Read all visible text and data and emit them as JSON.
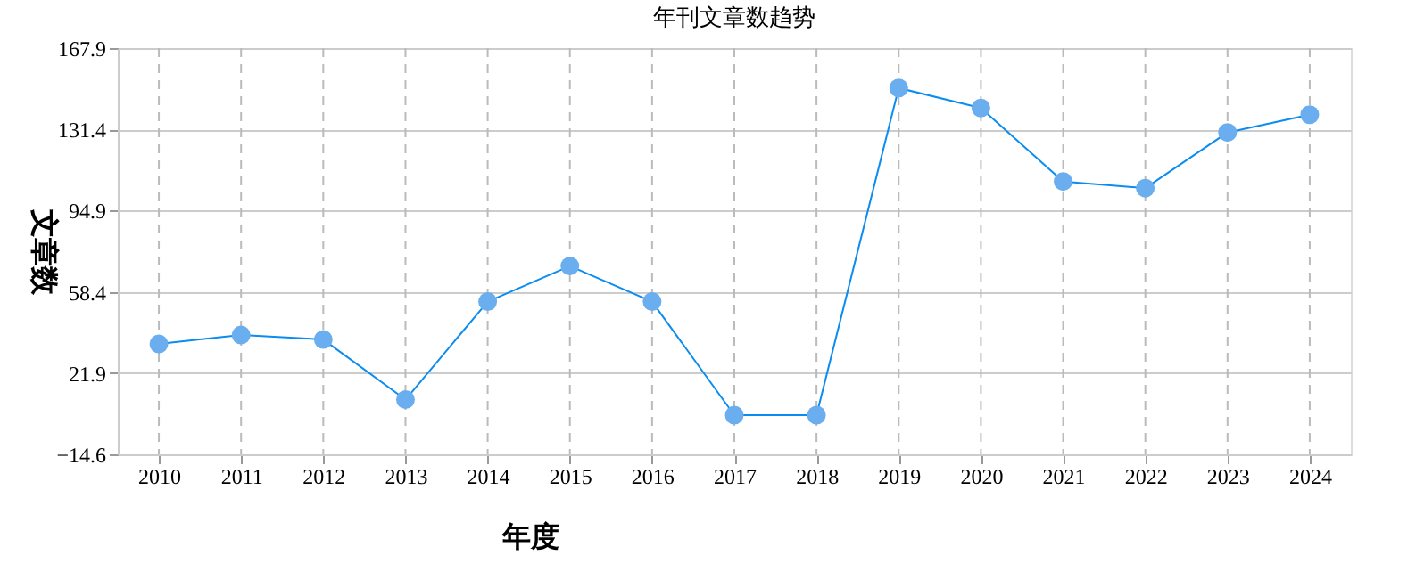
{
  "chart_data": {
    "type": "line",
    "title": "年刊文章数趋势",
    "xlabel": "年度",
    "ylabel": "文章数",
    "categories": [
      "2010",
      "2011",
      "2012",
      "2013",
      "2014",
      "2015",
      "2016",
      "2017",
      "2018",
      "2019",
      "2020",
      "2021",
      "2022",
      "2023",
      "2024"
    ],
    "series": [
      {
        "color": "#0a8cf0",
        "values": [
          35,
          39,
          37,
          10,
          54,
          70,
          54,
          3,
          3,
          150,
          141,
          108,
          105,
          130,
          138
        ]
      }
    ],
    "ylim": [
      -14.6,
      167.9
    ],
    "yticks": [
      -14.6,
      21.9,
      58.4,
      94.9,
      131.4,
      167.9
    ],
    "grid": true,
    "marker": "circle",
    "line_style": "solid",
    "legend": false
  }
}
